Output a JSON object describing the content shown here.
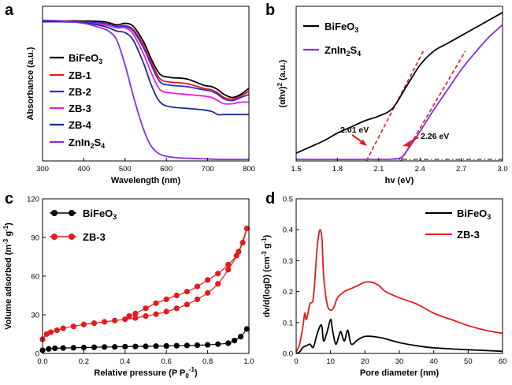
{
  "chart_data": [
    {
      "panel": "a",
      "type": "line",
      "xlabel": "Wavelength (nm)",
      "ylabel": "Absorbance (a.u.)",
      "xlim": [
        300,
        800
      ],
      "ylim": [
        0,
        1
      ],
      "xticks": [
        "300",
        "400",
        "500",
        "600",
        "700",
        "800"
      ],
      "series": [
        {
          "name": "BiFeO3",
          "sub": "3",
          "base": "BiFeO",
          "color": "#000000",
          "x": [
            300,
            350,
            400,
            450,
            480,
            500,
            520,
            545,
            565,
            585,
            610,
            650,
            690,
            710,
            725,
            740,
            760,
            780,
            800
          ],
          "y": [
            0.9,
            0.905,
            0.905,
            0.9,
            0.88,
            0.89,
            0.87,
            0.77,
            0.65,
            0.56,
            0.54,
            0.53,
            0.49,
            0.48,
            0.46,
            0.43,
            0.41,
            0.43,
            0.47
          ]
        },
        {
          "name": "ZB-1",
          "color": "#e41a1c",
          "x": [
            300,
            350,
            400,
            450,
            480,
            500,
            520,
            545,
            565,
            585,
            610,
            650,
            690,
            710,
            725,
            740,
            760,
            780,
            800
          ],
          "y": [
            0.9,
            0.9,
            0.9,
            0.89,
            0.87,
            0.875,
            0.85,
            0.75,
            0.63,
            0.53,
            0.51,
            0.5,
            0.47,
            0.46,
            0.44,
            0.41,
            0.4,
            0.42,
            0.45
          ]
        },
        {
          "name": "ZB-2",
          "color": "#2b2bd6",
          "x": [
            300,
            350,
            400,
            450,
            480,
            500,
            520,
            545,
            565,
            585,
            610,
            650,
            690,
            710,
            725,
            740,
            760,
            780,
            800
          ],
          "y": [
            0.9,
            0.9,
            0.9,
            0.89,
            0.87,
            0.87,
            0.84,
            0.73,
            0.61,
            0.51,
            0.49,
            0.48,
            0.46,
            0.45,
            0.43,
            0.4,
            0.39,
            0.41,
            0.43
          ]
        },
        {
          "name": "ZB-3",
          "color": "#e61ee6",
          "x": [
            300,
            350,
            400,
            450,
            480,
            500,
            520,
            545,
            565,
            585,
            610,
            650,
            690,
            710,
            725,
            740,
            760,
            780,
            800
          ],
          "y": [
            0.9,
            0.9,
            0.895,
            0.88,
            0.86,
            0.86,
            0.82,
            0.69,
            0.56,
            0.46,
            0.44,
            0.43,
            0.42,
            0.41,
            0.39,
            0.37,
            0.37,
            0.38,
            0.38
          ]
        },
        {
          "name": "ZB-4",
          "color": "#1c2a8c",
          "x": [
            300,
            350,
            400,
            450,
            480,
            500,
            520,
            545,
            565,
            585,
            610,
            650,
            690,
            710,
            725,
            740,
            760,
            780,
            800
          ],
          "y": [
            0.9,
            0.9,
            0.895,
            0.87,
            0.84,
            0.83,
            0.78,
            0.63,
            0.48,
            0.38,
            0.35,
            0.34,
            0.33,
            0.32,
            0.3,
            0.3,
            0.3,
            0.3,
            0.3
          ]
        },
        {
          "name": "ZnIn2S4",
          "color": "#8a2be2",
          "x": [
            300,
            350,
            400,
            430,
            460,
            480,
            500,
            520,
            540,
            560,
            580,
            600,
            630,
            680,
            730,
            800
          ],
          "y": [
            0.91,
            0.905,
            0.89,
            0.87,
            0.84,
            0.78,
            0.62,
            0.42,
            0.24,
            0.11,
            0.05,
            0.03,
            0.02,
            0.015,
            0.01,
            0.01
          ]
        }
      ],
      "legend": [
        "BiFeO3",
        "ZB-1",
        "ZB-2",
        "ZB-3",
        "ZB-4",
        "ZnIn2S4"
      ]
    },
    {
      "panel": "b",
      "type": "line",
      "xlabel": "hν (eV)",
      "ylabel": "(αhν)² (a.u.)",
      "xlim": [
        1.5,
        3.0
      ],
      "ylim": [
        0,
        1
      ],
      "xticks": [
        "1.5",
        "1.8",
        "2.1",
        "2.4",
        "2.7",
        "3.0"
      ],
      "series": [
        {
          "name": "BiFeO3",
          "color": "#000000",
          "x": [
            1.5,
            1.6,
            1.7,
            1.8,
            1.9,
            2.0,
            2.1,
            2.2,
            2.3,
            2.4,
            2.5,
            2.6,
            2.7,
            2.8,
            2.9,
            3.0
          ],
          "y": [
            0.05,
            0.09,
            0.13,
            0.18,
            0.22,
            0.26,
            0.29,
            0.34,
            0.48,
            0.62,
            0.71,
            0.76,
            0.81,
            0.86,
            0.91,
            0.96
          ]
        },
        {
          "name": "ZnIn2S4",
          "color": "#8a2be2",
          "x": [
            1.5,
            1.8,
            2.1,
            2.2,
            2.26,
            2.3,
            2.4,
            2.5,
            2.6,
            2.7,
            2.8,
            2.9,
            3.0
          ],
          "y": [
            0.01,
            0.01,
            0.01,
            0.012,
            0.02,
            0.06,
            0.19,
            0.33,
            0.46,
            0.59,
            0.7,
            0.8,
            0.88
          ]
        }
      ],
      "tangents": [
        {
          "x": [
            2.01,
            2.43
          ],
          "y": [
            0.0,
            0.72
          ]
        },
        {
          "x": [
            2.26,
            2.73
          ],
          "y": [
            0.0,
            0.71
          ]
        }
      ],
      "baseline": {
        "y": 0.01
      },
      "annotations": [
        {
          "text": "2.01 eV",
          "x": 2.01
        },
        {
          "text": "2.26 eV",
          "x": 2.26
        }
      ]
    },
    {
      "panel": "c",
      "type": "scatter",
      "xlabel": "Relative pressure (P P0-1)",
      "ylabel": "Volume adsorbed (m-3 g-1)",
      "xlim": [
        0,
        1.0
      ],
      "ylim": [
        0,
        120
      ],
      "xticks": [
        "0.0",
        "0.2",
        "0.4",
        "0.6",
        "0.8",
        "1.0"
      ],
      "yticks": [
        "0",
        "30",
        "60",
        "90",
        "120"
      ],
      "series": [
        {
          "name": "BiFeO3",
          "color": "#000000",
          "x": [
            0.0,
            0.03,
            0.06,
            0.1,
            0.15,
            0.2,
            0.25,
            0.3,
            0.35,
            0.4,
            0.45,
            0.5,
            0.55,
            0.6,
            0.65,
            0.7,
            0.75,
            0.8,
            0.85,
            0.9,
            0.93,
            0.96,
            0.99
          ],
          "y": [
            2.5,
            3.5,
            4,
            4.2,
            4.4,
            4.6,
            4.8,
            5,
            5.1,
            5.3,
            5.4,
            5.5,
            5.7,
            5.8,
            6,
            6.2,
            6.4,
            6.7,
            7.2,
            8,
            10,
            13,
            19
          ]
        },
        {
          "name": "ZB-3",
          "color": "#e41a1c",
          "x": [
            0.0,
            0.02,
            0.04,
            0.07,
            0.1,
            0.15,
            0.2,
            0.25,
            0.3,
            0.35,
            0.4,
            0.45,
            0.5,
            0.55,
            0.6,
            0.65,
            0.7,
            0.75,
            0.8,
            0.85,
            0.9,
            0.95,
            0.99
          ],
          "y": [
            11,
            15,
            16.5,
            18,
            19.5,
            21,
            22.5,
            23.5,
            24.5,
            25.5,
            26.5,
            27.5,
            29,
            30.5,
            32.5,
            35,
            38,
            42,
            47,
            54,
            65,
            79,
            97
          ]
        },
        {
          "name": "ZB-3 desorption",
          "color": "#e41a1c",
          "x": [
            0.99,
            0.97,
            0.94,
            0.9,
            0.85,
            0.8,
            0.75,
            0.7,
            0.65,
            0.6,
            0.55,
            0.5,
            0.45,
            0.42
          ],
          "y": [
            97,
            86,
            76,
            69,
            62,
            57,
            52,
            48,
            45,
            42,
            39,
            35,
            31,
            29
          ]
        }
      ],
      "legend": [
        "BiFeO3",
        "ZB-3"
      ]
    },
    {
      "panel": "d",
      "type": "line",
      "xlabel": "Pore diameter (nm)",
      "ylabel": "dv/d(logD) (cm-3 g-1)",
      "xlim": [
        0,
        60
      ],
      "ylim": [
        0,
        0.5
      ],
      "xticks": [
        "0",
        "10",
        "20",
        "30",
        "40",
        "50",
        "60"
      ],
      "yticks": [
        "0.0",
        "0.1",
        "0.2",
        "0.3",
        "0.4",
        "0.5"
      ],
      "series": [
        {
          "name": "BiFeO3",
          "color": "#000000",
          "x": [
            0,
            1,
            2,
            3,
            4,
            5,
            6,
            7,
            7.5,
            8,
            9,
            10,
            10.5,
            11.5,
            12.5,
            13,
            14,
            15,
            16,
            18,
            20,
            22,
            25,
            30,
            35,
            40,
            50,
            60
          ],
          "y": [
            0,
            0.005,
            0.02,
            0.025,
            0.03,
            0.02,
            0.06,
            0.09,
            0.085,
            0.04,
            0.07,
            0.11,
            0.08,
            0.03,
            0.06,
            0.07,
            0.04,
            0.075,
            0.03,
            0.045,
            0.055,
            0.055,
            0.05,
            0.035,
            0.025,
            0.018,
            0.012,
            0.007
          ]
        },
        {
          "name": "ZB-3",
          "color": "#e41a1c",
          "x": [
            0,
            1,
            2,
            2.5,
            3,
            4,
            5,
            6,
            6.5,
            7,
            7.5,
            8,
            9,
            10,
            11,
            12,
            14,
            16,
            18,
            20,
            22,
            24,
            26,
            30,
            35,
            40,
            45,
            50,
            55,
            60
          ],
          "y": [
            0.005,
            0.03,
            0.09,
            0.13,
            0.11,
            0.16,
            0.18,
            0.33,
            0.38,
            0.4,
            0.37,
            0.25,
            0.16,
            0.14,
            0.15,
            0.18,
            0.2,
            0.21,
            0.22,
            0.23,
            0.23,
            0.22,
            0.2,
            0.18,
            0.16,
            0.13,
            0.11,
            0.09,
            0.075,
            0.065
          ]
        }
      ],
      "legend": [
        "BiFeO3",
        "ZB-3"
      ]
    }
  ],
  "labels": {
    "panel_a": "a",
    "panel_b": "b",
    "panel_c": "c",
    "panel_d": "d",
    "a_xlabel": "Wavelength (nm)",
    "a_ylabel": "Absorbance (a.u.)",
    "b_xlabel": "hv (eV)",
    "b_ylabel_pre": "(αhν)",
    "b_ylabel_sup": "2",
    "b_ylabel_post": " (a.u.)",
    "c_xlabel_pre": "Relative pressure (P P",
    "c_xlabel_sub": "0",
    "c_xlabel_sup": "-1",
    "c_xlabel_post": ")",
    "c_ylabel_pre": "Volume adsorbed (m",
    "c_ylabel_sup1": "-3",
    "c_ylabel_mid": " g",
    "c_ylabel_sup2": "-1",
    "c_ylabel_post": ")",
    "d_xlabel": "Pore diameter (nm)",
    "d_ylabel_pre": "dv/d(logD) (cm",
    "d_ylabel_sup1": "-3",
    "d_ylabel_mid": " g",
    "d_ylabel_sup2": "-1",
    "d_ylabel_post": ")",
    "b_ann1": "2.01 eV",
    "b_ann2": "2.26 eV",
    "leg_bifeo": "BiFeO",
    "leg_sub3": "3",
    "leg_zb1": "ZB-1",
    "leg_zb2": "ZB-2",
    "leg_zb3": "ZB-3",
    "leg_zb4": "ZB-4",
    "leg_zis_pre": "ZnIn",
    "leg_zis_sub2": "2",
    "leg_zis_mid": "S",
    "leg_zis_sub4": "4"
  }
}
